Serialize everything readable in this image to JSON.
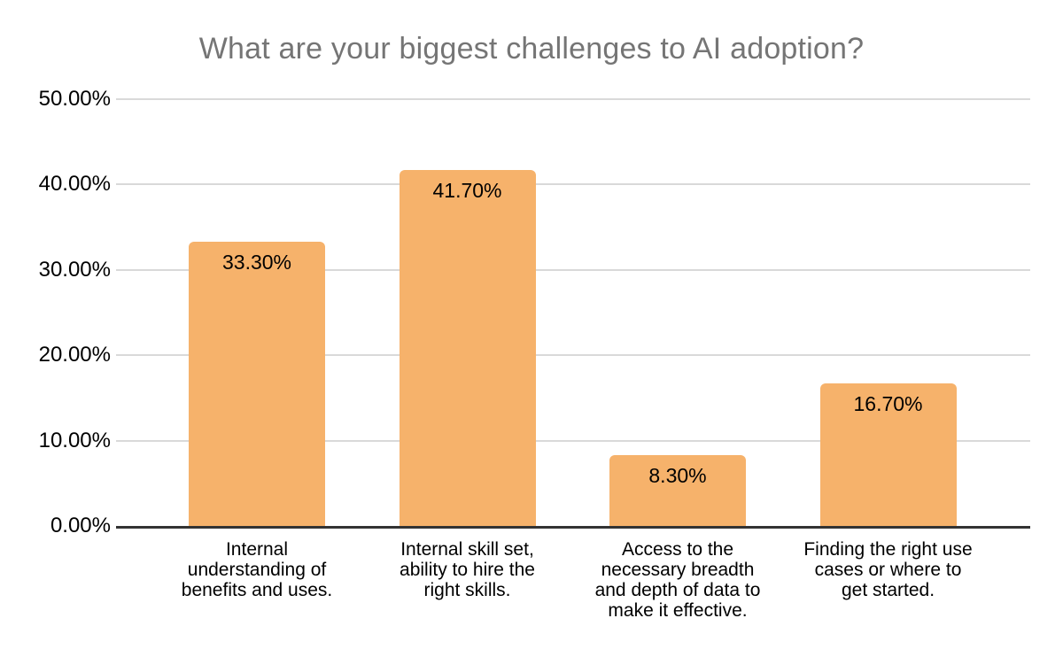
{
  "chart_data": {
    "type": "bar",
    "title": "What are your biggest challenges to AI adoption?",
    "categories": [
      "Internal understanding of benefits and uses.",
      "Internal skill set, ability to hire the right skills.",
      "Access to the necessary breadth and depth of data to make it effective.",
      "Finding the right use cases or where to get started."
    ],
    "category_lines": [
      [
        "Internal",
        "understanding of",
        "benefits and uses."
      ],
      [
        "Internal skill set,",
        "ability to hire the",
        "right skills."
      ],
      [
        "Access to the",
        "necessary breadth",
        "and depth of data to",
        "make it effective."
      ],
      [
        "Finding the right use",
        "cases or where to",
        "get started."
      ]
    ],
    "values": [
      33.3,
      41.7,
      8.3,
      16.7
    ],
    "value_labels": [
      "33.30%",
      "41.70%",
      "8.30%",
      "16.70%"
    ],
    "xlabel": "",
    "ylabel": "",
    "ylim": [
      0,
      50
    ],
    "y_ticks": [
      "0.00%",
      "10.00%",
      "20.00%",
      "30.00%",
      "40.00%",
      "50.00%"
    ],
    "grid": "horizontal gridlines on, dark baseline at 0",
    "legend": "none",
    "colors": {
      "bar": "#f6b26b",
      "title": "#757575",
      "gridline": "#d9d9d9",
      "baseline": "#333333",
      "text": "#000000",
      "background": "#ffffff"
    }
  }
}
